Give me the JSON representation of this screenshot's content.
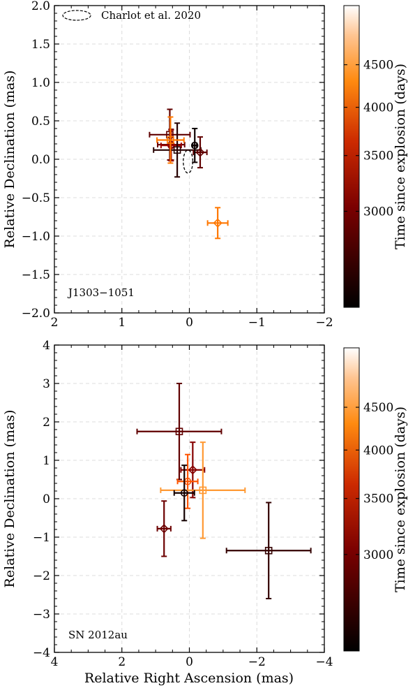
{
  "colorbar": {
    "label": "Time since explosion (days)",
    "ticks": [
      "3000",
      "3500",
      "4000",
      "4500"
    ],
    "tick_values": [
      3000,
      3500,
      4000,
      4500
    ],
    "range": [
      2300,
      5300
    ],
    "colormap": "gist_heat"
  },
  "chart_data": [
    {
      "type": "scatter",
      "title": "",
      "xlabel": "",
      "ylabel": "Relative Declination (mas)",
      "xlim": [
        2,
        -2
      ],
      "ylim": [
        -2,
        2
      ],
      "xticks": [
        "2",
        "1",
        "0",
        "−1",
        "−2"
      ],
      "xtick_values": [
        2,
        1,
        0,
        -1,
        -2
      ],
      "yticks": [
        "−2.0",
        "−1.5",
        "−1.0",
        "−0.5",
        "0.0",
        "0.5",
        "1.0",
        "1.5",
        "2.0"
      ],
      "ytick_values": [
        -2,
        -1.5,
        -1,
        -0.5,
        0,
        0.5,
        1,
        1.5,
        2
      ],
      "grid": true,
      "annotation": "J1303−1051",
      "legend": {
        "label": "Charlot et al. 2020",
        "position": "top-left"
      },
      "ellipse": {
        "x": 0.02,
        "y": -0.03,
        "rx": 0.07,
        "ry": 0.15
      },
      "points": [
        {
          "x": 0.29,
          "y": 0.32,
          "xerr": 0.3,
          "yerr": 0.33,
          "day": 3050,
          "marker": "square"
        },
        {
          "x": 0.27,
          "y": 0.19,
          "xerr": 0.2,
          "yerr": 0.2,
          "day": 3150,
          "marker": "circle"
        },
        {
          "x": 0.27,
          "y": 0.18,
          "xerr": 0.15,
          "yerr": 0.2,
          "day": 3500,
          "marker": "circle"
        },
        {
          "x": 0.18,
          "y": 0.12,
          "xerr": 0.35,
          "yerr": 0.35,
          "day": 2600,
          "marker": "square"
        },
        {
          "x": 0.28,
          "y": 0.25,
          "xerr": 0.2,
          "yerr": 0.3,
          "day": 4500,
          "marker": "square"
        },
        {
          "x": -0.16,
          "y": 0.09,
          "xerr": 0.1,
          "yerr": 0.2,
          "day": 3050,
          "marker": "diamond"
        },
        {
          "x": -0.08,
          "y": 0.18,
          "xerr": 0.03,
          "yerr": 0.22,
          "day": 2400,
          "marker": "circle"
        },
        {
          "x": -0.42,
          "y": -0.83,
          "xerr": 0.15,
          "yerr": 0.2,
          "day": 4500,
          "marker": "diamond"
        }
      ]
    },
    {
      "type": "scatter",
      "title": "",
      "xlabel": "Relative Right Ascension (mas)",
      "ylabel": "Relative Declination (mas)",
      "xlim": [
        4,
        -4
      ],
      "ylim": [
        -4,
        4
      ],
      "xticks": [
        "4",
        "2",
        "0",
        "−2",
        "−4"
      ],
      "xtick_values": [
        4,
        2,
        0,
        -2,
        -4
      ],
      "yticks": [
        "−4",
        "−3",
        "−2",
        "−1",
        "0",
        "1",
        "2",
        "3",
        "4"
      ],
      "ytick_values": [
        -4,
        -3,
        -2,
        -1,
        0,
        1,
        2,
        3,
        4
      ],
      "grid": true,
      "annotation": "SN 2012au",
      "points": [
        {
          "x": 0.3,
          "y": 1.75,
          "xerr": 1.25,
          "yerr": 1.25,
          "day": 3050,
          "marker": "square"
        },
        {
          "x": -0.1,
          "y": 0.75,
          "xerr": 0.35,
          "yerr": 0.72,
          "day": 3350,
          "marker": "diamond"
        },
        {
          "x": 0.05,
          "y": 0.45,
          "xerr": 0.3,
          "yerr": 0.7,
          "day": 4300,
          "marker": "circle"
        },
        {
          "x": -0.4,
          "y": 0.22,
          "xerr": 1.25,
          "yerr": 1.25,
          "day": 4700,
          "marker": "square"
        },
        {
          "x": 0.15,
          "y": 0.15,
          "xerr": 0.3,
          "yerr": 0.72,
          "day": 2450,
          "marker": "circle"
        },
        {
          "x": 0.75,
          "y": -0.78,
          "xerr": 0.2,
          "yerr": 0.72,
          "day": 3150,
          "marker": "diamond"
        },
        {
          "x": -2.35,
          "y": -1.35,
          "xerr": 1.25,
          "yerr": 1.25,
          "day": 2700,
          "marker": "square"
        }
      ]
    }
  ]
}
